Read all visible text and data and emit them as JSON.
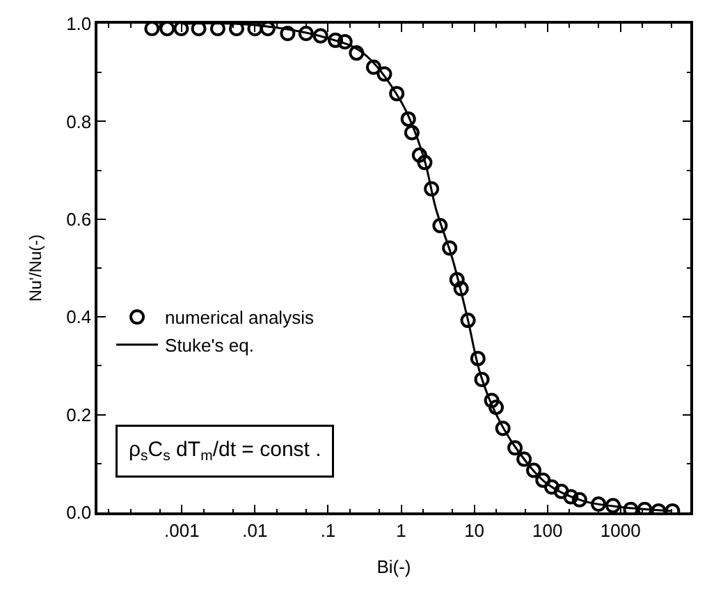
{
  "chart_data": {
    "type": "scatter",
    "xlabel": "Bi(-)",
    "ylabel": "Nu'/Nu(-)",
    "log": "x",
    "xlim": [
      7e-05,
      9000
    ],
    "ylim": [
      0,
      1
    ],
    "xticks": [
      {
        "value": 0.001,
        "label": ".001"
      },
      {
        "value": 0.01,
        "label": ".01"
      },
      {
        "value": 0.1,
        "label": ".1"
      },
      1,
      10,
      100,
      1000
    ],
    "yticks": [
      {
        "value": 0,
        "label": "0.0"
      },
      0.2,
      0.4,
      0.6,
      0.8,
      {
        "value": 1,
        "label": "1.0"
      }
    ],
    "legend": "bottom left",
    "series": [
      {
        "name": "numerical analysis",
        "marker": "circle",
        "color": "#000000",
        "x": [
          0.00039,
          0.00063,
          0.00098,
          0.0017,
          0.0031,
          0.0056,
          0.01,
          0.015,
          0.028,
          0.05,
          0.079,
          0.126,
          0.17,
          0.245,
          0.42,
          0.59,
          0.87,
          1.25,
          1.4,
          1.78,
          2.1,
          2.6,
          3.4,
          4.6,
          5.8,
          6.6,
          8.2,
          11.2,
          12.7,
          17.3,
          19.9,
          24.6,
          36,
          48,
          65,
          87,
          115,
          155,
          209,
          275,
          500,
          790,
          1380,
          2140,
          3310,
          5130
        ],
        "values": [
          0.99,
          0.99,
          0.99,
          0.99,
          0.99,
          0.99,
          0.99,
          0.99,
          0.98,
          0.98,
          0.975,
          0.966,
          0.963,
          0.94,
          0.911,
          0.897,
          0.857,
          0.805,
          0.777,
          0.731,
          0.716,
          0.662,
          0.587,
          0.541,
          0.476,
          0.458,
          0.393,
          0.315,
          0.272,
          0.229,
          0.215,
          0.172,
          0.132,
          0.109,
          0.086,
          0.066,
          0.052,
          0.043,
          0.032,
          0.026,
          0.017,
          0.014,
          0.006,
          0.006,
          0.003,
          0.003
        ]
      },
      {
        "name": "Stuke's eq.",
        "type": "line",
        "line_style": "solid",
        "color": "#000000",
        "x": [
          0.001,
          0.01,
          0.1,
          0.3,
          1,
          2,
          3,
          5,
          8,
          12,
          20,
          40,
          100,
          300,
          1000,
          5000
        ],
        "values": [
          1.0,
          0.997,
          0.97,
          0.94,
          0.84,
          0.73,
          0.62,
          0.52,
          0.4,
          0.285,
          0.2,
          0.125,
          0.058,
          0.024,
          0.011,
          0.003
        ]
      }
    ],
    "annotations": [
      "ρ$_{s}$C$_{s}$ dT$_{m}$/dt = const ."
    ]
  }
}
